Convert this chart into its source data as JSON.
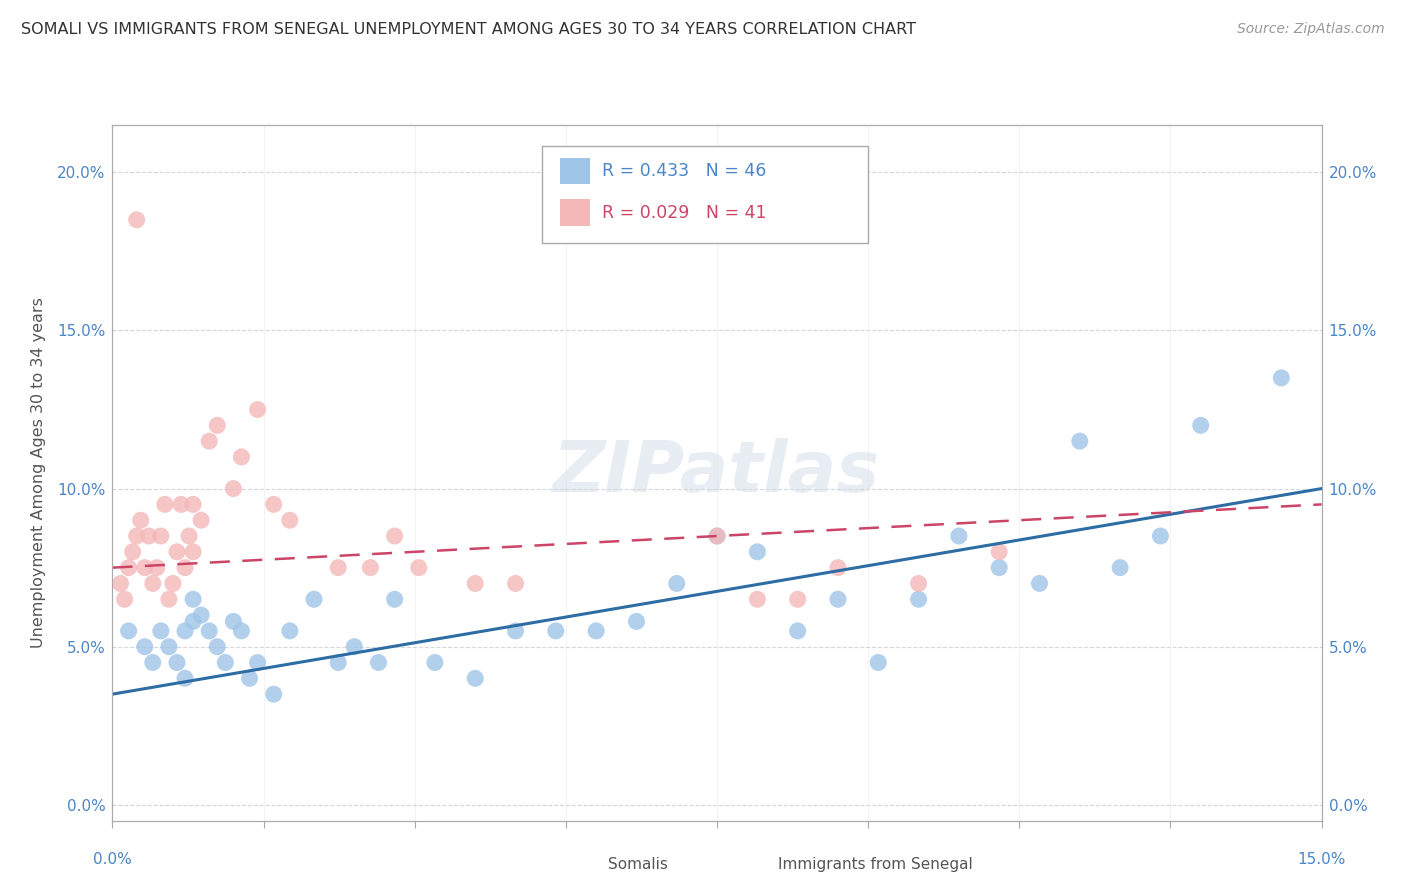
{
  "title": "SOMALI VS IMMIGRANTS FROM SENEGAL UNEMPLOYMENT AMONG AGES 30 TO 34 YEARS CORRELATION CHART",
  "source": "Source: ZipAtlas.com",
  "ylabel": "Unemployment Among Ages 30 to 34 years",
  "yticks": [
    "0.0%",
    "5.0%",
    "10.0%",
    "15.0%",
    "20.0%"
  ],
  "ytick_vals": [
    0.0,
    5.0,
    10.0,
    15.0,
    20.0
  ],
  "xlim": [
    0.0,
    15.0
  ],
  "ylim": [
    -0.5,
    21.5
  ],
  "somali_R": "0.433",
  "somali_N": "46",
  "senegal_R": "0.029",
  "senegal_N": "41",
  "somali_color": "#9fc5e8",
  "senegal_color": "#f4b8b8",
  "somali_line_color": "#2e6da4",
  "senegal_line_color": "#cc4466",
  "somali_x": [
    0.2,
    0.4,
    0.5,
    0.6,
    0.7,
    0.8,
    0.9,
    0.9,
    1.0,
    1.0,
    1.1,
    1.2,
    1.3,
    1.4,
    1.5,
    1.6,
    1.7,
    1.8,
    2.0,
    2.2,
    2.5,
    2.8,
    3.0,
    3.3,
    3.5,
    4.0,
    4.5,
    5.0,
    5.5,
    6.0,
    6.5,
    7.0,
    7.5,
    8.0,
    8.5,
    9.0,
    9.5,
    10.0,
    10.5,
    11.0,
    11.5,
    12.0,
    12.5,
    13.0,
    13.5,
    14.5
  ],
  "somali_y": [
    5.5,
    5.0,
    4.5,
    5.5,
    5.0,
    4.5,
    4.0,
    5.5,
    6.5,
    5.8,
    6.0,
    5.5,
    5.0,
    4.5,
    5.8,
    5.5,
    4.0,
    4.5,
    3.5,
    5.5,
    6.5,
    4.5,
    5.0,
    4.5,
    6.5,
    4.5,
    4.0,
    5.5,
    5.5,
    5.5,
    5.8,
    7.0,
    8.5,
    8.0,
    5.5,
    6.5,
    4.5,
    6.5,
    8.5,
    7.5,
    7.0,
    11.5,
    7.5,
    8.5,
    12.0,
    13.5
  ],
  "senegal_x": [
    0.1,
    0.15,
    0.2,
    0.25,
    0.3,
    0.35,
    0.4,
    0.45,
    0.5,
    0.55,
    0.6,
    0.65,
    0.7,
    0.75,
    0.8,
    0.85,
    0.9,
    0.95,
    1.0,
    1.0,
    1.1,
    1.2,
    1.3,
    1.5,
    1.6,
    1.8,
    2.0,
    2.2,
    2.8,
    3.2,
    3.5,
    3.8,
    4.5,
    5.0,
    7.5,
    8.0,
    8.5,
    9.0,
    10.0,
    11.0,
    0.3
  ],
  "senegal_y": [
    7.0,
    6.5,
    7.5,
    8.0,
    8.5,
    9.0,
    7.5,
    8.5,
    7.0,
    7.5,
    8.5,
    9.5,
    6.5,
    7.0,
    8.0,
    9.5,
    7.5,
    8.5,
    8.0,
    9.5,
    9.0,
    11.5,
    12.0,
    10.0,
    11.0,
    12.5,
    9.5,
    9.0,
    7.5,
    7.5,
    8.5,
    7.5,
    7.0,
    7.0,
    8.5,
    6.5,
    6.5,
    7.5,
    7.0,
    8.0,
    18.5
  ],
  "background_color": "#ffffff",
  "grid_color": "#cccccc",
  "watermark": "ZIPatlas"
}
